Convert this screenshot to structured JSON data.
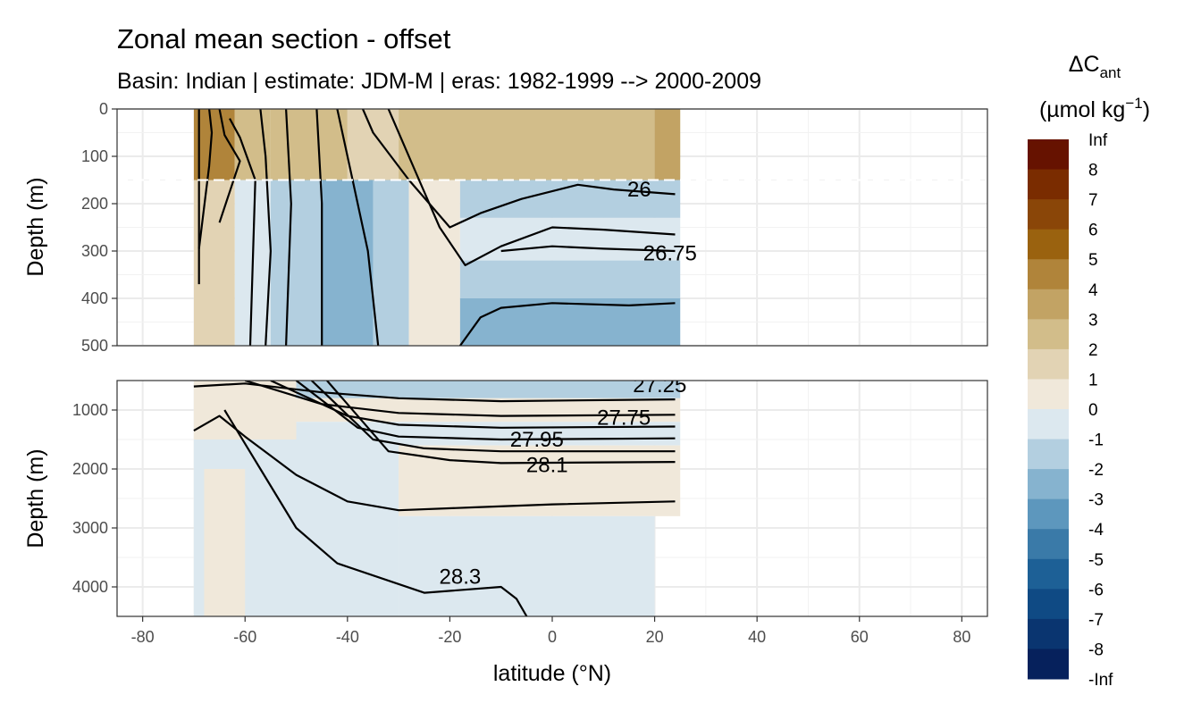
{
  "chart_data": {
    "type": "heatmap",
    "title": "Zonal mean section - offset",
    "subtitle": "Basin: Indian | estimate: JDM-M | eras: 1982-1999 --> 2000-2009",
    "xlabel": "latitude (°N)",
    "x_range": [
      -85,
      85
    ],
    "x_ticks": [
      -80,
      -60,
      -40,
      -20,
      0,
      20,
      40,
      60,
      80
    ],
    "x_tick_labels": [
      "-80",
      "-60",
      "-40",
      "-20",
      "0",
      "20",
      "40",
      "60",
      "80"
    ],
    "data_lat_range": [
      -70,
      25
    ],
    "mixed_layer_depth_line": 150,
    "panels": [
      {
        "name": "upper",
        "ylabel": "Depth (m)",
        "depth_range": [
          0,
          500
        ],
        "y_ticks": [
          0,
          100,
          200,
          300,
          400,
          500
        ],
        "y_tick_labels": [
          "0",
          "100",
          "200",
          "300",
          "400",
          "500"
        ],
        "field": [
          {
            "lat": [
              -70,
              -62
            ],
            "depth": [
              0,
              150
            ],
            "value": 4.5
          },
          {
            "lat": [
              -62,
              -55
            ],
            "depth": [
              0,
              150
            ],
            "value": 2.5
          },
          {
            "lat": [
              -55,
              -40
            ],
            "depth": [
              0,
              150
            ],
            "value": 2.5
          },
          {
            "lat": [
              -40,
              -30
            ],
            "depth": [
              0,
              150
            ],
            "value": 1.5
          },
          {
            "lat": [
              -30,
              20
            ],
            "depth": [
              0,
              150
            ],
            "value": 2.5
          },
          {
            "lat": [
              20,
              25
            ],
            "depth": [
              0,
              150
            ],
            "value": 3.5
          },
          {
            "lat": [
              -70,
              -62
            ],
            "depth": [
              150,
              500
            ],
            "value": 1.5
          },
          {
            "lat": [
              -62,
              -55
            ],
            "depth": [
              150,
              500
            ],
            "value": -0.5
          },
          {
            "lat": [
              -55,
              -45
            ],
            "depth": [
              150,
              500
            ],
            "value": -1.5
          },
          {
            "lat": [
              -45,
              -35
            ],
            "depth": [
              150,
              500
            ],
            "value": -2.5
          },
          {
            "lat": [
              -35,
              -28
            ],
            "depth": [
              150,
              500
            ],
            "value": -1.5
          },
          {
            "lat": [
              -28,
              -18
            ],
            "depth": [
              150,
              500
            ],
            "value": 0.5
          },
          {
            "lat": [
              -18,
              25
            ],
            "depth": [
              150,
              230
            ],
            "value": -1.5
          },
          {
            "lat": [
              -18,
              25
            ],
            "depth": [
              230,
              320
            ],
            "value": -0.5
          },
          {
            "lat": [
              -18,
              25
            ],
            "depth": [
              320,
              400
            ],
            "value": -1.5
          },
          {
            "lat": [
              -18,
              25
            ],
            "depth": [
              400,
              500
            ],
            "value": -2.5
          }
        ],
        "isopycnals": [
          {
            "label": "",
            "points": [
              [
                -69,
                0
              ],
              [
                -69,
                100
              ],
              [
                -69,
                370
              ]
            ]
          },
          {
            "label": "",
            "points": [
              [
                -67,
                0
              ],
              [
                -66.5,
                50
              ],
              [
                -67,
                120
              ],
              [
                -69,
                295
              ]
            ]
          },
          {
            "label": "",
            "points": [
              [
                -65,
                0
              ],
              [
                -64,
                55
              ],
              [
                -61,
                110
              ],
              [
                -65,
                240
              ]
            ]
          },
          {
            "label": "",
            "points": [
              [
                -63,
                20
              ],
              [
                -61,
                60
              ],
              [
                -58,
                150
              ],
              [
                -59,
                500
              ]
            ]
          },
          {
            "label": "",
            "points": [
              [
                -57,
                0
              ],
              [
                -56,
                100
              ],
              [
                -55,
                300
              ],
              [
                -56,
                500
              ]
            ]
          },
          {
            "label": "",
            "points": [
              [
                -52,
                0
              ],
              [
                -51,
                200
              ],
              [
                -52,
                500
              ]
            ]
          },
          {
            "label": "",
            "points": [
              [
                -46,
                0
              ],
              [
                -45,
                200
              ],
              [
                -45,
                500
              ]
            ]
          },
          {
            "label": "",
            "points": [
              [
                -42,
                0
              ],
              [
                -39,
                150
              ],
              [
                -36,
                300
              ],
              [
                -34,
                500
              ]
            ]
          },
          {
            "label": "",
            "points": [
              [
                -37,
                0
              ],
              [
                -35,
                50
              ],
              [
                -28,
                150
              ],
              [
                -20,
                250
              ],
              [
                -14,
                220
              ],
              [
                -6,
                190
              ],
              [
                5,
                160
              ],
              [
                12,
                170
              ],
              [
                24,
                180
              ]
            ]
          },
          {
            "label": "26",
            "points": [
              [
                -32,
                0
              ],
              [
                -26,
                150
              ],
              [
                -22,
                250
              ],
              [
                -17,
                330
              ],
              [
                -10,
                290
              ],
              [
                0,
                250
              ],
              [
                10,
                255
              ],
              [
                24,
                265
              ]
            ]
          },
          {
            "label": "26.75",
            "points": [
              [
                -10,
                300
              ],
              [
                0,
                290
              ],
              [
                10,
                295
              ],
              [
                24,
                300
              ]
            ]
          },
          {
            "label": "",
            "points": [
              [
                -18,
                500
              ],
              [
                -14,
                440
              ],
              [
                -10,
                420
              ],
              [
                0,
                410
              ],
              [
                15,
                415
              ],
              [
                24,
                410
              ]
            ]
          }
        ],
        "isopycnal_labels": [
          {
            "text": "26",
            "lat": 17,
            "depth": 185
          },
          {
            "text": "26.75",
            "lat": 23,
            "depth": 320
          }
        ]
      },
      {
        "name": "lower",
        "ylabel": "Depth (m)",
        "depth_range": [
          500,
          4500
        ],
        "y_ticks": [
          1000,
          2000,
          3000,
          4000
        ],
        "y_tick_labels": [
          "1000",
          "2000",
          "3000",
          "4000"
        ],
        "field": [
          {
            "lat": [
              -70,
              -50
            ],
            "depth": [
              500,
              1500
            ],
            "value": 0.5
          },
          {
            "lat": [
              -50,
              25
            ],
            "depth": [
              500,
              800
            ],
            "value": -1.5
          },
          {
            "lat": [
              -50,
              25
            ],
            "depth": [
              800,
              1200
            ],
            "value": 0.5
          },
          {
            "lat": [
              -50,
              25
            ],
            "depth": [
              1200,
              1600
            ],
            "value": -0.5
          },
          {
            "lat": [
              -70,
              -30
            ],
            "depth": [
              1500,
              4500
            ],
            "value": -0.5
          },
          {
            "lat": [
              -30,
              25
            ],
            "depth": [
              1600,
              2800
            ],
            "value": 0.5
          },
          {
            "lat": [
              -30,
              20
            ],
            "depth": [
              2800,
              4500
            ],
            "value": -0.5
          },
          {
            "lat": [
              -68,
              -60
            ],
            "depth": [
              2000,
              4500
            ],
            "value": 0.5
          }
        ],
        "isopycnals": [
          {
            "label": "",
            "points": [
              [
                -70,
                600
              ],
              [
                -60,
                550
              ],
              [
                -45,
                700
              ],
              [
                -30,
                800
              ],
              [
                -10,
                850
              ],
              [
                24,
                820
              ]
            ]
          },
          {
            "label": "27.25",
            "points": [
              [
                -60,
                500
              ],
              [
                -45,
                900
              ],
              [
                -30,
                1050
              ],
              [
                -10,
                1100
              ],
              [
                24,
                1080
              ]
            ]
          },
          {
            "label": "",
            "points": [
              [
                -55,
                500
              ],
              [
                -40,
                1100
              ],
              [
                -30,
                1250
              ],
              [
                -10,
                1300
              ],
              [
                24,
                1280
              ]
            ]
          },
          {
            "label": "27.75",
            "points": [
              [
                -50,
                500
              ],
              [
                -38,
                1300
              ],
              [
                -30,
                1450
              ],
              [
                -10,
                1500
              ],
              [
                24,
                1480
              ]
            ]
          },
          {
            "label": "",
            "points": [
              [
                -47,
                500
              ],
              [
                -35,
                1500
              ],
              [
                -25,
                1650
              ],
              [
                -10,
                1700
              ],
              [
                24,
                1700
              ]
            ]
          },
          {
            "label": "27.95",
            "points": [
              [
                -44,
                500
              ],
              [
                -32,
                1700
              ],
              [
                -20,
                1850
              ],
              [
                -10,
                1900
              ],
              [
                24,
                1880
              ]
            ]
          },
          {
            "label": "28.1",
            "points": [
              [
                -70,
                1350
              ],
              [
                -65,
                1100
              ],
              [
                -60,
                1450
              ],
              [
                -50,
                2100
              ],
              [
                -40,
                2550
              ],
              [
                -30,
                2700
              ],
              [
                -15,
                2650
              ],
              [
                0,
                2600
              ],
              [
                24,
                2550
              ]
            ]
          },
          {
            "label": "28.3",
            "points": [
              [
                -64,
                1000
              ],
              [
                -57,
                2000
              ],
              [
                -50,
                3000
              ],
              [
                -42,
                3600
              ],
              [
                -25,
                4100
              ],
              [
                -10,
                4000
              ],
              [
                -7,
                4200
              ],
              [
                -5,
                4500
              ]
            ]
          }
        ],
        "isopycnal_labels": [
          {
            "text": "27.25",
            "lat": 21,
            "depth": 700
          },
          {
            "text": "27.75",
            "lat": 14,
            "depth": 1250
          },
          {
            "text": "27.95",
            "lat": -3,
            "depth": 1620
          },
          {
            "text": "28.1",
            "lat": -1,
            "depth": 2050
          },
          {
            "text": "28.3",
            "lat": -18,
            "depth": 3950
          }
        ]
      }
    ],
    "legend": {
      "title": "ΔC",
      "title_sub": "ant",
      "units_prefix": "(µmol kg",
      "units_exp": "−1",
      "units_suffix": ")",
      "position": "right",
      "labels": [
        "Inf",
        "8",
        "7",
        "6",
        "5",
        "4",
        "3",
        "2",
        "1",
        "0",
        "-1",
        "-2",
        "-3",
        "-4",
        "-5",
        "-6",
        "-7",
        "-8",
        "-Inf"
      ],
      "colors": [
        "#661200",
        "#7a2c00",
        "#8a4608",
        "#9a620f",
        "#b0843a",
        "#c2a364",
        "#d2bd8a",
        "#e2d3b4",
        "#f0e8da",
        "#dce8ef",
        "#b3cfe0",
        "#86b3cf",
        "#5d97bd",
        "#3a7aa8",
        "#1d6096",
        "#0f4a84",
        "#0a3570",
        "#06215c"
      ]
    }
  }
}
